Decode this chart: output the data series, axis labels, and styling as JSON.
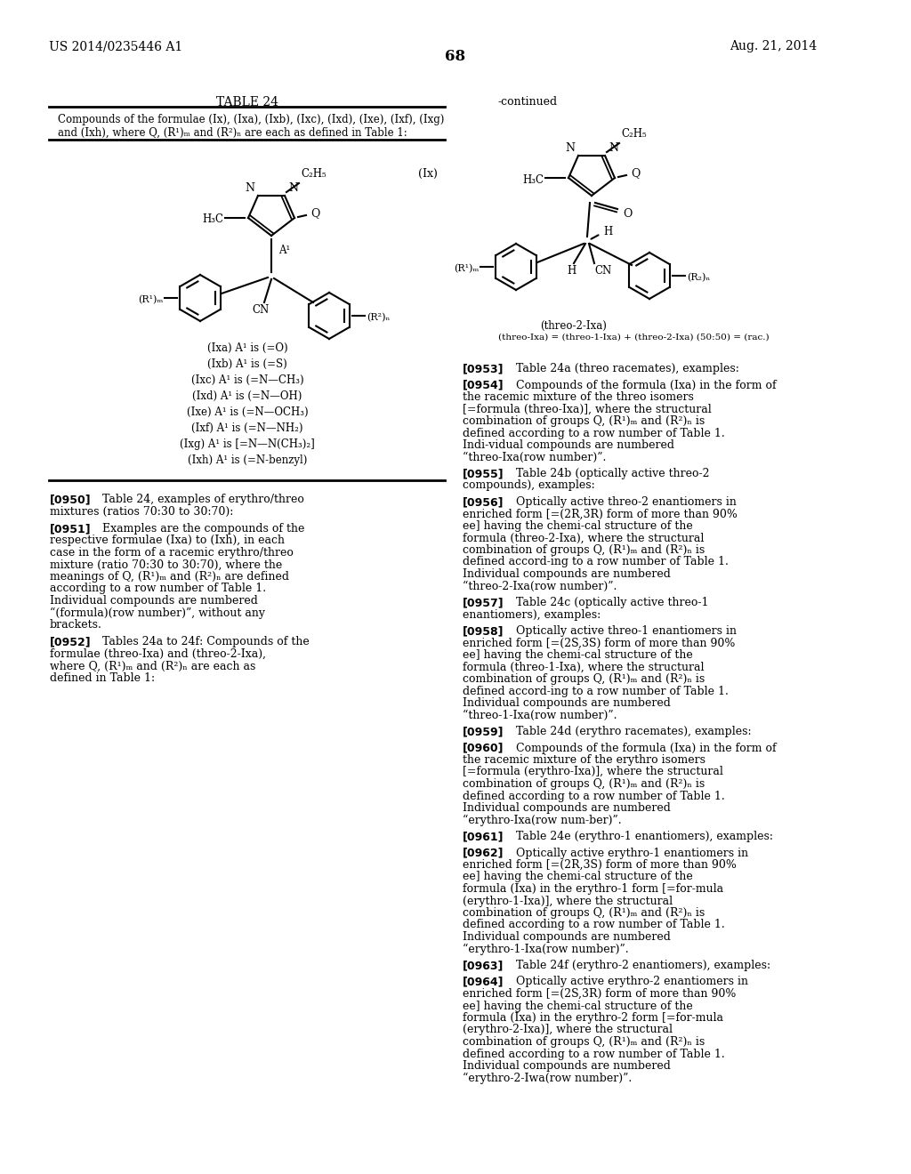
{
  "background_color": "#ffffff",
  "header_left": "US 2014/0235446 A1",
  "header_right": "Aug. 21, 2014",
  "page_number": "68",
  "table_title": "TABLE 24",
  "continued_label": "-continued",
  "table_desc_line1": "Compounds of the formulae (Ix), (Ixa), (Ixb), (Ixc), (Ixd), (Ixe), (Ixf), (Ixg)",
  "table_desc_line2": "and (Ixh), where Q, (R¹)ₘ and (R²)ₙ are each as defined in Table 1:",
  "formula_label_ix": "(Ix)",
  "variants": [
    "(Ixa) A¹ is (=O)",
    "(Ixb) A¹ is (=S)",
    "(Ixc) A¹ is (=N—CH₃)",
    "(Ixd) A¹ is (=N—OH)",
    "(Ixe) A¹ is (=N—OCH₃)",
    "(Ixf) A¹ is (=N—NH₂)",
    "(Ixg) A¹ is [=N—N(CH₃)₂]",
    "(Ixh) A¹ is (=N-benzyl)"
  ],
  "left_paragraphs": [
    {
      "number": "[0950]",
      "text": "Table 24, examples of erythro/threo mixtures (ratios 70:30 to 30:70):"
    },
    {
      "number": "[0951]",
      "text": "Examples are the compounds of the respective formulae (Ixa) to (Ixh), in each case in the form of a racemic erythro/threo mixture (ratio 70:30 to 30:70), where the meanings of Q, (R¹)ₘ and (R²)ₙ are defined according to a row number of Table 1. Individual compounds are numbered “(formula)(row number)”, without any brackets."
    },
    {
      "number": "[0952]",
      "text": "Tables 24a to 24f: Compounds of the formulae (threo-Ixa) and (threo-2-Ixa), where Q, (R¹)ₘ and (R²)ₙ are each as defined in Table 1:"
    }
  ],
  "threo2_label": "(threo-2-Ixa)",
  "threo_rac_label": "(threo-Ixa) = (threo-1-Ixa) + (threo-2-Ixa) (50:50) = (rac.)",
  "right_paragraphs": [
    {
      "number": "[0953]",
      "text": "Table 24a (threo racemates), examples:"
    },
    {
      "number": "[0954]",
      "text": "Compounds of the formula (Ixa) in the form of the racemic mixture of the threo isomers [=formula (threo-Ixa)], where the structural combination of groups Q, (R¹)ₘ and (R²)ₙ is defined according to a row number of Table 1. Indi-vidual compounds are numbered “threo-Ixa(row number)”."
    },
    {
      "number": "[0955]",
      "text": "Table 24b (optically active threo-2 compounds), examples:"
    },
    {
      "number": "[0956]",
      "text": "Optically active threo-2 enantiomers in enriched form [=(2R,3R) form of more than 90% ee] having the chemi-cal structure of the formula (threo-2-Ixa), where the structural combination of groups Q, (R¹)ₘ and (R²)ₙ is defined accord-ing to a row number of Table 1. Individual compounds are numbered “threo-2-Ixa(row number)”."
    },
    {
      "number": "[0957]",
      "text": "Table 24c (optically active threo-1 enantiomers), examples:"
    },
    {
      "number": "[0958]",
      "text": "Optically active threo-1 enantiomers in enriched form [=(2S,3S) form of more than 90% ee] having the chemi-cal structure of the formula (threo-1-Ixa), where the structural combination of groups Q, (R¹)ₘ and (R²)ₙ is defined accord-ing to a row number of Table 1. Individual compounds are numbered “threo-1-Ixa(row number)”."
    },
    {
      "number": "[0959]",
      "text": "Table 24d (erythro racemates), examples:"
    },
    {
      "number": "[0960]",
      "text": "Compounds of the formula (Ixa) in the form of the racemic mixture of the erythro isomers [=formula (erythro-Ixa)], where the structural combination of groups Q, (R¹)ₘ and (R²)ₙ is defined according to a row number of Table 1. Individual compounds are numbered “erythro-Ixa(row num-ber)”."
    },
    {
      "number": "[0961]",
      "text": "Table 24e (erythro-1 enantiomers), examples:"
    },
    {
      "number": "[0962]",
      "text": "Optically active erythro-1 enantiomers in enriched form [=(2R,3S) form of more than 90% ee] having the chemi-cal structure of the formula (Ixa) in the erythro-1 form [=for-mula (erythro-1-Ixa)], where the structural combination of groups Q, (R¹)ₘ and (R²)ₙ is defined according to a row number of Table 1. Individual compounds are numbered “erythro-1-Ixa(row number)”."
    },
    {
      "number": "[0963]",
      "text": "Table 24f (erythro-2 enantiomers), examples:"
    },
    {
      "number": "[0964]",
      "text": "Optically active erythro-2 enantiomers in enriched form [=(2S,3R) form of more than 90% ee] having the chemi-cal structure of the formula (Ixa) in the erythro-2 form [=for-mula (erythro-2-Ixa)], where the structural combination of groups Q, (R¹)ₘ and (R²)ₙ is defined according to a row number of Table 1. Individual compounds are numbered “erythro-2-Iwa(row number)”."
    }
  ]
}
